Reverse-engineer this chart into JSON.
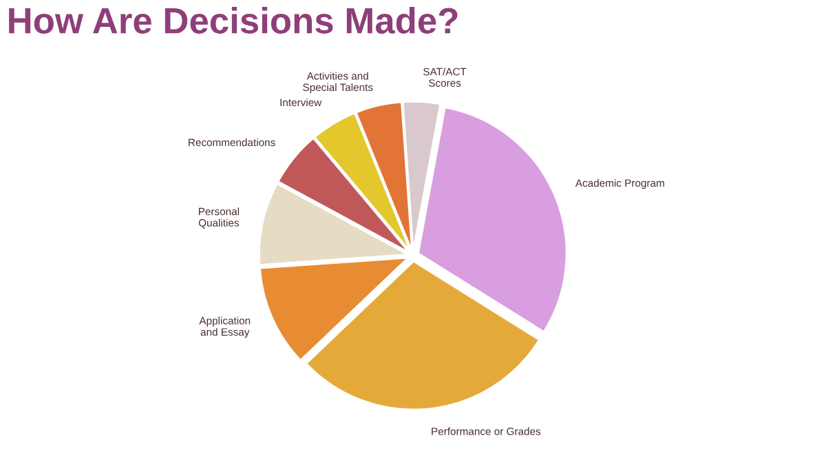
{
  "chart_data": {
    "type": "pie",
    "title": "How Are Decisions Made?",
    "categories": [
      "SAT/ACT\nScores",
      "Academic Program",
      "Performance or Grades",
      "Application\nand Essay",
      "Personal\nQualities",
      "Recommendations",
      "Interview",
      "Activities and\nSpecial Talents"
    ],
    "values": [
      4,
      31,
      29,
      11,
      9,
      6,
      5,
      5
    ],
    "colors": [
      "#d9c9cc",
      "#d89ee0",
      "#e5a93a",
      "#e88c34",
      "#e6dcc4",
      "#c0585a",
      "#e3c72c",
      "#e27435"
    ]
  }
}
